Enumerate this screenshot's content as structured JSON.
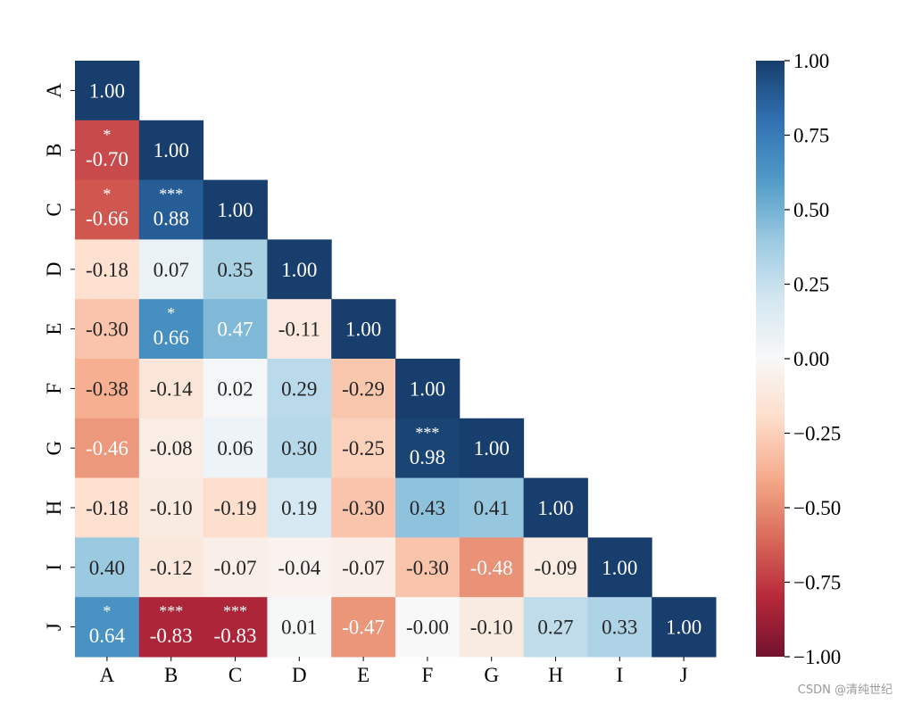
{
  "chart_data": {
    "type": "heatmap",
    "title": "",
    "xlabel": "",
    "ylabel": "",
    "x_categories": [
      "A",
      "B",
      "C",
      "D",
      "E",
      "F",
      "G",
      "H",
      "I",
      "J"
    ],
    "y_categories": [
      "A",
      "B",
      "C",
      "D",
      "E",
      "F",
      "G",
      "H",
      "I",
      "J"
    ],
    "mask": "upper-triangle",
    "colormap": "RdBu",
    "vmin": -1.0,
    "vmax": 1.0,
    "values": [
      [
        1.0
      ],
      [
        -0.7,
        1.0
      ],
      [
        -0.66,
        0.88,
        1.0
      ],
      [
        -0.18,
        0.07,
        0.35,
        1.0
      ],
      [
        -0.3,
        0.66,
        0.47,
        -0.11,
        1.0
      ],
      [
        -0.38,
        -0.14,
        0.02,
        0.29,
        -0.29,
        1.0
      ],
      [
        -0.46,
        -0.08,
        0.06,
        0.3,
        -0.25,
        0.98,
        1.0
      ],
      [
        -0.18,
        -0.1,
        -0.19,
        0.19,
        -0.3,
        0.43,
        0.41,
        1.0
      ],
      [
        0.4,
        -0.12,
        -0.07,
        -0.04,
        -0.07,
        -0.3,
        -0.48,
        -0.09,
        1.0
      ],
      [
        0.64,
        -0.83,
        -0.83,
        0.01,
        -0.47,
        -0.0,
        -0.1,
        0.27,
        0.33,
        1.0
      ]
    ],
    "labels": [
      [
        "1.00"
      ],
      [
        "-0.70",
        "1.00"
      ],
      [
        "-0.66",
        "0.88",
        "1.00"
      ],
      [
        "-0.18",
        "0.07",
        "0.35",
        "1.00"
      ],
      [
        "-0.30",
        "0.66",
        "0.47",
        "-0.11",
        "1.00"
      ],
      [
        "-0.38",
        "-0.14",
        "0.02",
        "0.29",
        "-0.29",
        "1.00"
      ],
      [
        "-0.46",
        "-0.08",
        "0.06",
        "0.30",
        "-0.25",
        "0.98",
        "1.00"
      ],
      [
        "-0.18",
        "-0.10",
        "-0.19",
        "0.19",
        "-0.30",
        "0.43",
        "0.41",
        "1.00"
      ],
      [
        "0.40",
        "-0.12",
        "-0.07",
        "-0.04",
        "-0.07",
        "-0.30",
        "-0.48",
        "-0.09",
        "1.00"
      ],
      [
        "0.64",
        "-0.83",
        "-0.83",
        "0.01",
        "-0.47",
        "-0.00",
        "-0.10",
        "0.27",
        "0.33",
        "1.00"
      ]
    ],
    "significance": [
      [
        ""
      ],
      [
        "*",
        ""
      ],
      [
        "*",
        "***",
        ""
      ],
      [
        "",
        "",
        "",
        ""
      ],
      [
        "",
        "*",
        "",
        "",
        ""
      ],
      [
        "",
        "",
        "",
        "",
        "",
        ""
      ],
      [
        "",
        "",
        "",
        "",
        "",
        "***",
        ""
      ],
      [
        "",
        "",
        "",
        "",
        "",
        "",
        "",
        ""
      ],
      [
        "",
        "",
        "",
        "",
        "",
        "",
        "",
        "",
        ""
      ],
      [
        "*",
        "***",
        "***",
        "",
        "",
        "",
        "",
        "",
        "",
        ""
      ]
    ],
    "colorbar": {
      "ticks": [
        1.0,
        0.75,
        0.5,
        0.25,
        0.0,
        -0.25,
        -0.5,
        -0.75,
        -1.0
      ],
      "tick_labels": [
        "1.00",
        "0.75",
        "0.50",
        "0.25",
        "0.00",
        "−0.25",
        "−0.50",
        "−0.75",
        "−1.00"
      ]
    },
    "grid": false
  },
  "watermark": "CSDN @清纯世纪"
}
